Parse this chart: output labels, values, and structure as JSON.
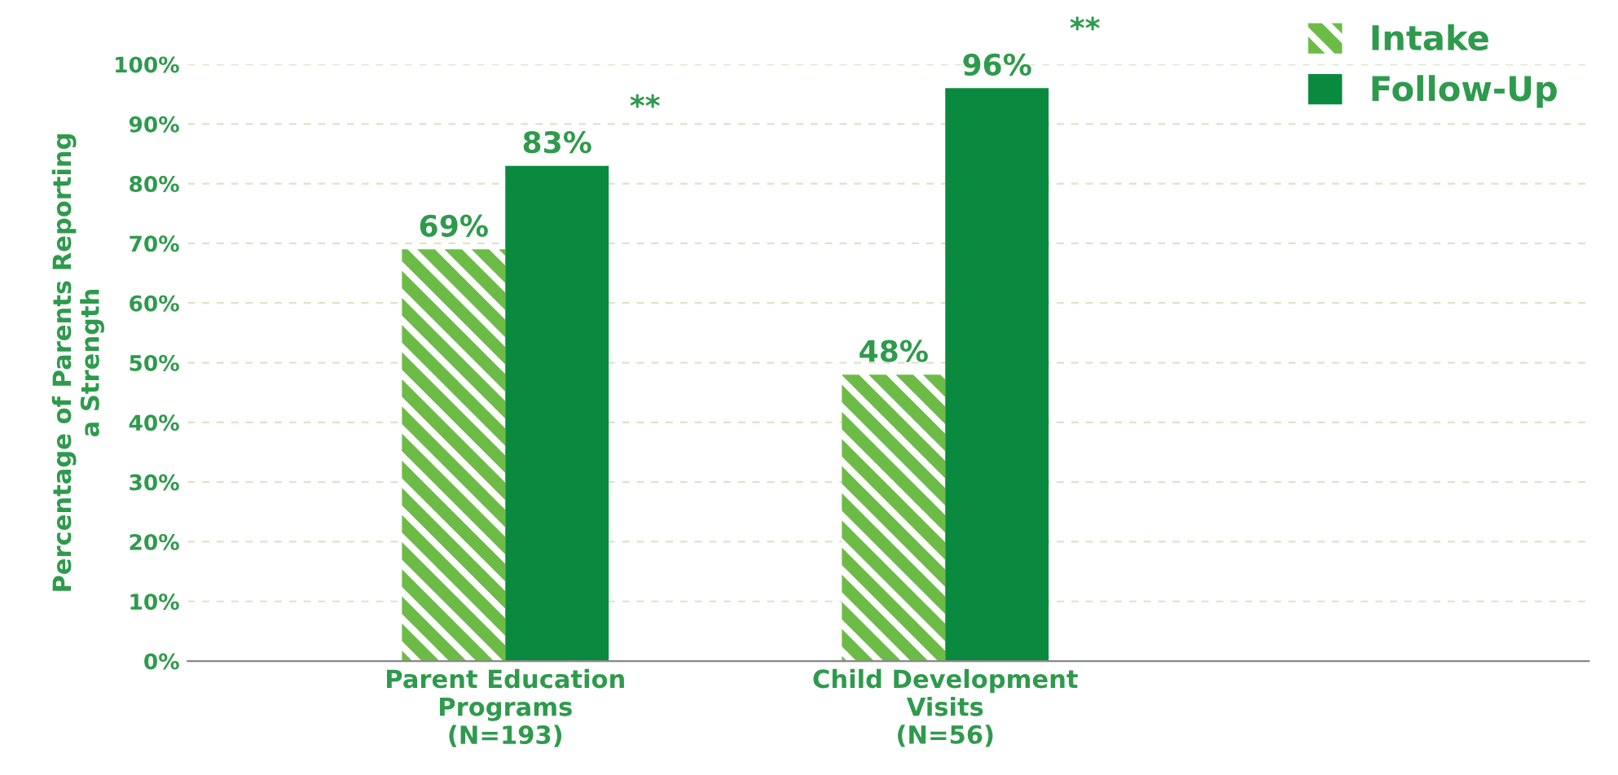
{
  "chart_data": {
    "type": "bar",
    "ylabel": "Percentage of Parents Reporting\na Strength",
    "categories": [
      "Parent Education\nPrograms\n(N=193)",
      "Child Development\nVisits\n(N=56)"
    ],
    "series": [
      {
        "name": "Intake",
        "color": "#6cbb46",
        "values": [
          69,
          48
        ],
        "value_labels": [
          "69%",
          "48%"
        ]
      },
      {
        "name": "Follow-Up",
        "color": "#0a8a3e",
        "values": [
          83,
          96
        ],
        "value_labels": [
          "83%",
          "96%"
        ]
      }
    ],
    "ylim": [
      0,
      100
    ],
    "yticks": [
      {
        "value": 0,
        "label": "0%"
      },
      {
        "value": 10,
        "label": "10%"
      },
      {
        "value": 20,
        "label": "20%"
      },
      {
        "value": 30,
        "label": "30%"
      },
      {
        "value": 40,
        "label": "40%"
      },
      {
        "value": 50,
        "label": "50%"
      },
      {
        "value": 60,
        "label": "60%"
      },
      {
        "value": 70,
        "label": "70%"
      },
      {
        "value": 80,
        "label": "80%"
      },
      {
        "value": 90,
        "label": "90%"
      },
      {
        "value": 100,
        "label": "100%"
      }
    ],
    "grid": "y",
    "legend": "top right",
    "annotations": [
      "**",
      "**"
    ]
  }
}
